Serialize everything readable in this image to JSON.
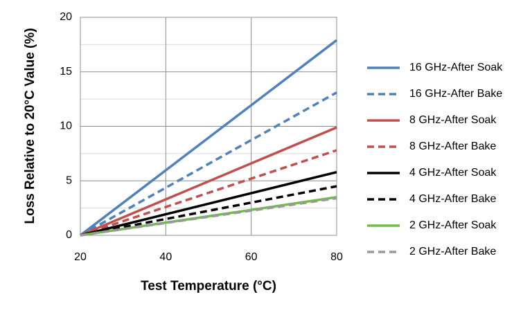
{
  "chart_data": {
    "type": "line",
    "x_label": "Test Temperature (°C)",
    "y_label": "Loss Relative to 20°C Value (%)",
    "x": [
      20,
      80
    ],
    "series": [
      {
        "name": "16 GHz-After Soak",
        "color": "#4f81bd",
        "style": "solid",
        "values": [
          0,
          17.9
        ]
      },
      {
        "name": "16 GHz-After Bake",
        "color": "#4f81bd",
        "style": "dashed",
        "values": [
          0,
          13.1
        ]
      },
      {
        "name": "8 GHz-After Soak",
        "color": "#c0504d",
        "style": "solid",
        "values": [
          0,
          9.9
        ]
      },
      {
        "name": "8 GHz-After Bake",
        "color": "#c0504d",
        "style": "dashed",
        "values": [
          0,
          7.8
        ]
      },
      {
        "name": "4 GHz-After Soak",
        "color": "#000000",
        "style": "solid",
        "values": [
          0,
          5.8
        ]
      },
      {
        "name": "4 GHz-After Bake",
        "color": "#000000",
        "style": "dashed",
        "values": [
          0,
          4.5
        ]
      },
      {
        "name": "2 GHz-After Soak",
        "color": "#6cbf44",
        "style": "solid",
        "values": [
          0,
          3.5
        ]
      },
      {
        "name": "2 GHz-After Bake",
        "color": "#999999",
        "style": "dashed",
        "values": [
          0,
          3.4
        ]
      }
    ],
    "xlim": [
      20,
      80
    ],
    "xticks": [
      20,
      40,
      60,
      80
    ],
    "ylim": [
      0,
      20
    ],
    "yticks": [
      0,
      5,
      10,
      15,
      20
    ],
    "yminor": [
      2.5,
      7.5,
      12.5,
      17.5
    ],
    "grid": true,
    "legend": "right"
  }
}
